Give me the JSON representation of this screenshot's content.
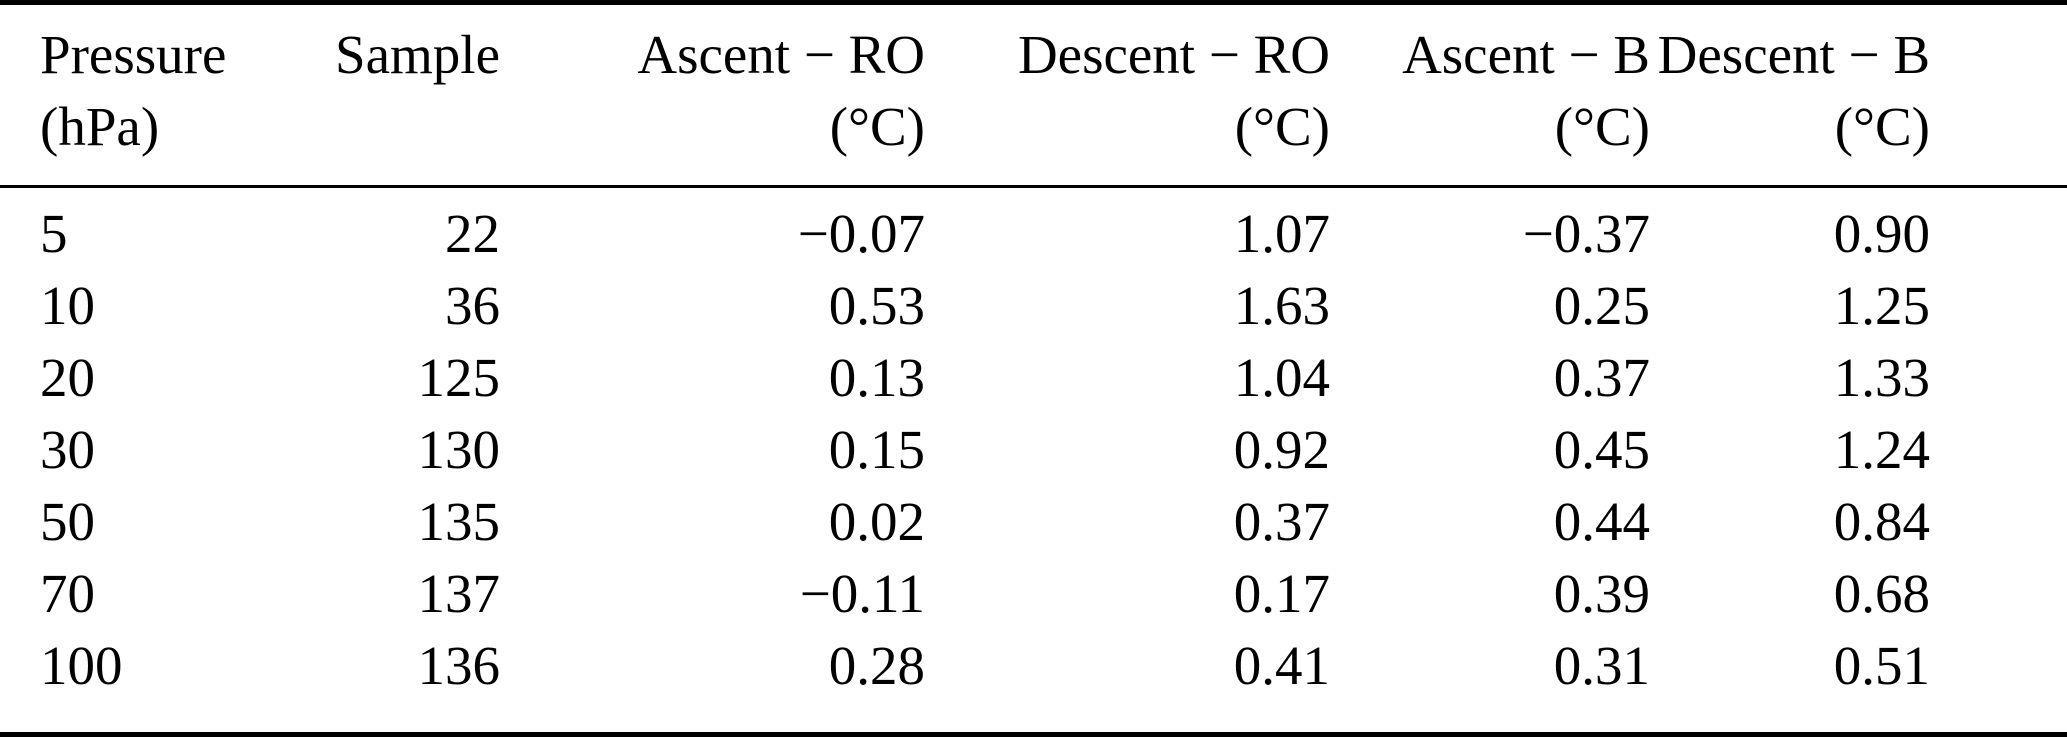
{
  "table": {
    "title": "temperature-difference-by-pressure-table",
    "columns": [
      {
        "line1": "Pressure",
        "line2": "(hPa)",
        "align": "left"
      },
      {
        "line1": "Sample",
        "line2": "",
        "align": "right"
      },
      {
        "line1": "Ascent − RO",
        "line2": "(°C)",
        "align": "right"
      },
      {
        "line1": "Descent − RO",
        "line2": "(°C)",
        "align": "right"
      },
      {
        "line1": "Ascent − B",
        "line2": "(°C)",
        "align": "right"
      },
      {
        "line1": "Descent − B",
        "line2": "(°C)",
        "align": "right"
      }
    ],
    "rows": [
      [
        "5",
        "22",
        "−0.07",
        "1.07",
        "−0.37",
        "0.90"
      ],
      [
        "10",
        "36",
        "0.53",
        "1.63",
        "0.25",
        "1.25"
      ],
      [
        "20",
        "125",
        "0.13",
        "1.04",
        "0.37",
        "1.33"
      ],
      [
        "30",
        "130",
        "0.15",
        "0.92",
        "0.45",
        "1.24"
      ],
      [
        "50",
        "135",
        "0.02",
        "0.37",
        "0.44",
        "0.84"
      ],
      [
        "70",
        "137",
        "−0.11",
        "0.17",
        "0.39",
        "0.68"
      ],
      [
        "100",
        "136",
        "0.28",
        "0.41",
        "0.31",
        "0.51"
      ]
    ]
  },
  "colors": {
    "text": "#000000",
    "background": "#ffffff",
    "rule": "#000000"
  }
}
